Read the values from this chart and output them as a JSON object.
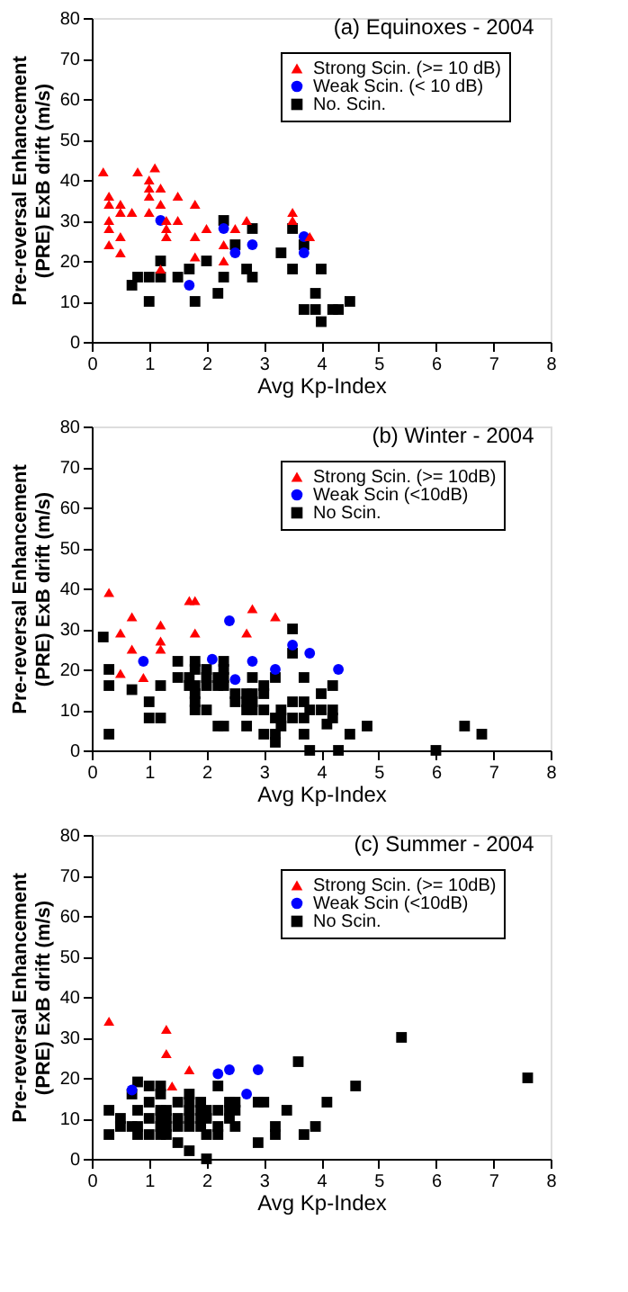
{
  "chart_data": [
    {
      "type": "scatter",
      "title": "(a) Equinoxes - 2004",
      "xlabel": "Avg Kp-Index",
      "ylabel": "Pre-reversal Enhancement\n(PRE) ExB drift (m/s)",
      "xlim": [
        0,
        8
      ],
      "xticks": [
        0,
        1,
        2,
        3,
        4,
        5,
        6,
        7,
        8
      ],
      "ylim": [
        0,
        80
      ],
      "yticks": [
        0,
        10,
        20,
        30,
        40,
        50,
        60,
        70,
        80
      ],
      "grid": false,
      "legend": "top right",
      "series": [
        {
          "name": "Strong Scin. (>= 10 dB)",
          "color": "#ff0000",
          "marker": "triangle",
          "x": [
            0.2,
            0.3,
            0.3,
            0.3,
            0.3,
            0.3,
            0.5,
            0.5,
            0.5,
            0.5,
            0.7,
            0.8,
            1.0,
            1.0,
            1.0,
            1.0,
            1.1,
            1.2,
            1.2,
            1.2,
            1.3,
            1.3,
            1.3,
            1.5,
            1.5,
            1.8,
            1.8,
            1.8,
            2.0,
            2.3,
            2.3,
            2.5,
            2.7,
            3.5,
            3.5,
            3.8
          ],
          "values": [
            42,
            36,
            34,
            30,
            28,
            24,
            34,
            32,
            26,
            22,
            32,
            42,
            40,
            38,
            36,
            32,
            43,
            38,
            34,
            18,
            30,
            28,
            26,
            36,
            30,
            34,
            26,
            21,
            28,
            24,
            20,
            28,
            30,
            32,
            30,
            26
          ]
        },
        {
          "name": "Weak Scin. (< 10 dB)",
          "color": "#0000ff",
          "marker": "circle",
          "x": [
            1.2,
            1.7,
            2.3,
            2.5,
            2.8,
            3.7,
            3.7
          ],
          "values": [
            30,
            14,
            28,
            22,
            24,
            26,
            22
          ]
        },
        {
          "name": "No. Scin.",
          "color": "#000000",
          "marker": "square",
          "x": [
            0.7,
            0.8,
            1.0,
            1.0,
            1.2,
            1.2,
            1.5,
            1.7,
            1.8,
            2.0,
            2.2,
            2.3,
            2.3,
            2.5,
            2.7,
            2.8,
            2.8,
            3.3,
            3.5,
            3.5,
            3.7,
            3.7,
            3.9,
            3.9,
            4.0,
            4.0,
            4.2,
            4.3,
            4.5
          ],
          "values": [
            14,
            16,
            16,
            10,
            20,
            16,
            16,
            18,
            10,
            20,
            12,
            30,
            16,
            24,
            18,
            28,
            16,
            22,
            28,
            18,
            24,
            8,
            12,
            8,
            18,
            5,
            8,
            8,
            10
          ]
        }
      ]
    },
    {
      "type": "scatter",
      "title": "(b) Winter - 2004",
      "xlabel": "Avg Kp-Index",
      "ylabel": "Pre-reversal Enhancement\n(PRE) ExB drift (m/s)",
      "xlim": [
        0,
        8
      ],
      "xticks": [
        0,
        1,
        2,
        3,
        4,
        5,
        6,
        7,
        8
      ],
      "ylim": [
        0,
        80
      ],
      "yticks": [
        0,
        10,
        20,
        30,
        40,
        50,
        60,
        70,
        80
      ],
      "grid": false,
      "legend": "top right",
      "series": [
        {
          "name": "Strong Scin. (>= 10dB)",
          "color": "#ff0000",
          "marker": "triangle",
          "x": [
            0.3,
            0.5,
            0.7,
            0.7,
            0.5,
            0.9,
            1.2,
            1.2,
            1.2,
            1.7,
            1.8,
            1.8,
            2.7,
            2.8,
            3.2
          ],
          "values": [
            39,
            29,
            33,
            25,
            19,
            18,
            31,
            27,
            25,
            37,
            37,
            29,
            29,
            35,
            33
          ]
        },
        {
          "name": "Weak Scin (<10dB)",
          "color": "#0000ff",
          "marker": "circle",
          "x": [
            0.9,
            2.1,
            2.4,
            2.5,
            2.8,
            3.2,
            3.5,
            3.8,
            4.3
          ],
          "values": [
            22,
            22.5,
            32,
            17.5,
            22,
            20,
            26,
            24,
            20
          ]
        },
        {
          "name": "No Scin.",
          "color": "#000000",
          "marker": "square",
          "x": [
            0.2,
            0.3,
            0.3,
            0.3,
            0.7,
            1.0,
            1.0,
            1.2,
            1.2,
            1.5,
            1.5,
            1.7,
            1.7,
            1.8,
            1.8,
            1.8,
            1.8,
            1.8,
            1.8,
            2.0,
            2.0,
            2.0,
            2.0,
            2.2,
            2.2,
            2.2,
            2.3,
            2.3,
            2.3,
            2.3,
            2.3,
            2.5,
            2.5,
            2.7,
            2.7,
            2.7,
            2.7,
            2.8,
            2.8,
            2.8,
            2.8,
            3.0,
            3.0,
            3.0,
            3.0,
            3.2,
            3.2,
            3.2,
            3.2,
            3.3,
            3.3,
            3.3,
            3.5,
            3.5,
            3.5,
            3.5,
            3.7,
            3.7,
            3.7,
            3.7,
            3.8,
            3.8,
            4.0,
            4.0,
            4.1,
            4.2,
            4.2,
            4.2,
            4.3,
            4.5,
            4.8,
            6.0,
            6.5,
            6.8
          ],
          "values": [
            28,
            20,
            16,
            4,
            15,
            12,
            8,
            16,
            8,
            22,
            18,
            18,
            16,
            22,
            20,
            16,
            14,
            12,
            10,
            20,
            18,
            16,
            10,
            18,
            16,
            6,
            22,
            20,
            18,
            16,
            6,
            14,
            12,
            14,
            12,
            10,
            6,
            18,
            14,
            12,
            10,
            16,
            14,
            10,
            4,
            18,
            8,
            4,
            2,
            10,
            8,
            6,
            30,
            24,
            12,
            8,
            18,
            12,
            8,
            4,
            10,
            0,
            14,
            10,
            6.5,
            16,
            10,
            8,
            0,
            4,
            6,
            0,
            6,
            4
          ]
        }
      ]
    },
    {
      "type": "scatter",
      "title": "(c) Summer - 2004",
      "xlabel": "Avg Kp-Index",
      "ylabel": "Pre-reversal Enhancement\n(PRE) ExB drift (m/s)",
      "xlim": [
        0,
        8
      ],
      "xticks": [
        0,
        1,
        2,
        3,
        4,
        5,
        6,
        7,
        8
      ],
      "ylim": [
        0,
        80
      ],
      "yticks": [
        0,
        10,
        20,
        30,
        40,
        50,
        60,
        70,
        80
      ],
      "grid": false,
      "legend": "top right",
      "series": [
        {
          "name": "Strong Scin. (>= 10dB)",
          "color": "#ff0000",
          "marker": "triangle",
          "x": [
            0.3,
            1.3,
            1.3,
            1.4,
            1.7
          ],
          "values": [
            34,
            32,
            26,
            18,
            22
          ]
        },
        {
          "name": "Weak Scin (<10dB)",
          "color": "#0000ff",
          "marker": "circle",
          "x": [
            0.7,
            2.2,
            2.4,
            2.7,
            2.9
          ],
          "values": [
            17,
            21,
            22,
            16,
            22
          ]
        },
        {
          "name": "No Scin.",
          "color": "#000000",
          "marker": "square",
          "x": [
            0.3,
            0.3,
            0.5,
            0.5,
            0.7,
            0.7,
            0.8,
            0.8,
            0.8,
            0.8,
            1.0,
            1.0,
            1.0,
            1.0,
            1.2,
            1.2,
            1.2,
            1.2,
            1.2,
            1.2,
            1.3,
            1.3,
            1.3,
            1.3,
            1.5,
            1.5,
            1.5,
            1.5,
            1.7,
            1.7,
            1.7,
            1.7,
            1.7,
            1.7,
            1.9,
            1.9,
            1.9,
            1.9,
            2.0,
            2.0,
            2.0,
            2.0,
            2.2,
            2.2,
            2.2,
            2.2,
            2.4,
            2.4,
            2.4,
            2.5,
            2.5,
            2.5,
            2.9,
            2.9,
            3.0,
            3.2,
            3.2,
            3.4,
            3.6,
            3.7,
            3.9,
            4.1,
            4.6,
            5.4,
            7.6
          ],
          "values": [
            12,
            6,
            10,
            8,
            16,
            8,
            19,
            12,
            8,
            6,
            18,
            14,
            10,
            6,
            18,
            16,
            12,
            10,
            8,
            6,
            12,
            10,
            8,
            6,
            14,
            10,
            8,
            4,
            16,
            14,
            12,
            10,
            8,
            2,
            14,
            12,
            10,
            8,
            12,
            10,
            6,
            0,
            18,
            12,
            8,
            6,
            14,
            12,
            10,
            14,
            12,
            8,
            14,
            4,
            14,
            8,
            6,
            12,
            24,
            6,
            8,
            14,
            18,
            30,
            20
          ]
        }
      ]
    }
  ]
}
